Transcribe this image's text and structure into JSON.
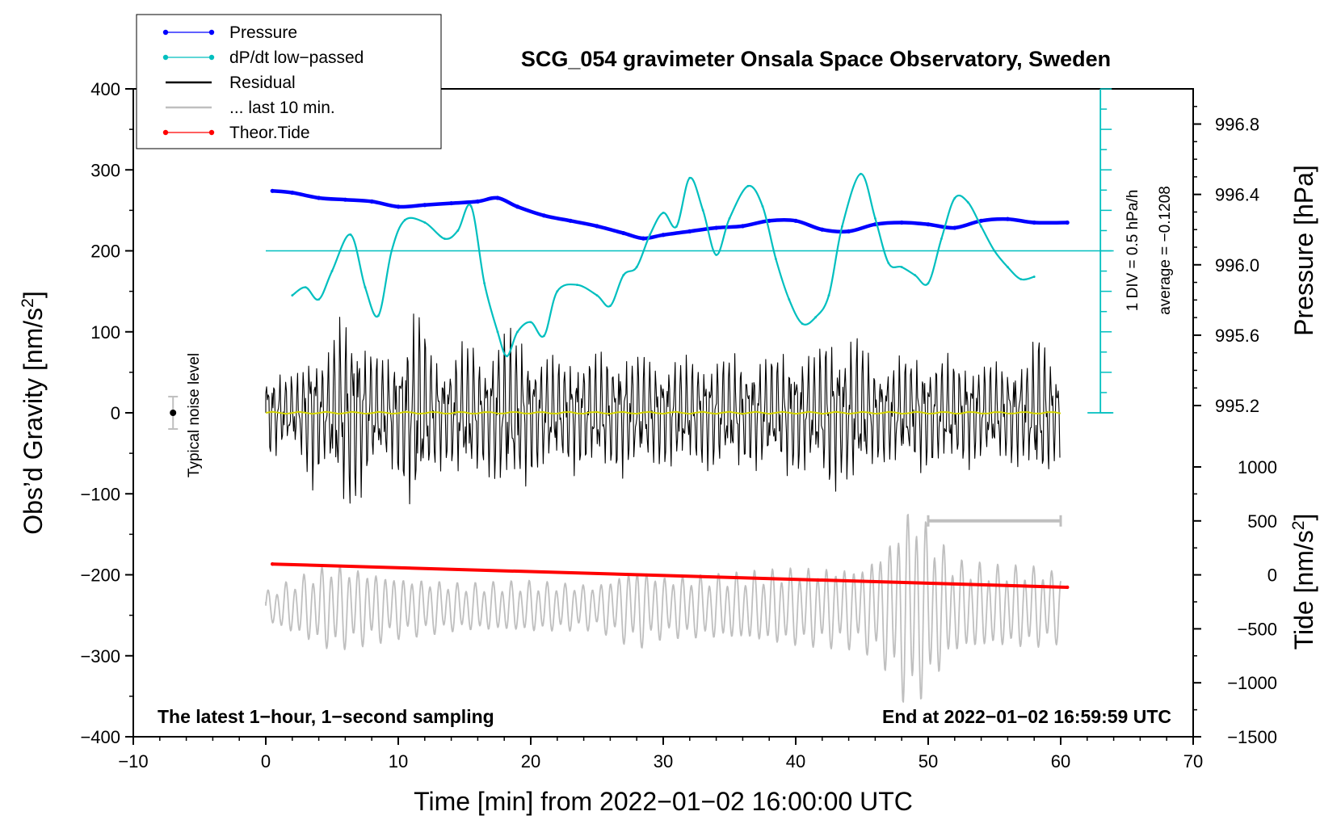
{
  "chart_data": {
    "type": "line",
    "title": "SCG_054 gravimeter Onsala Space Observatory, Sweden",
    "xlabel": "Time [min] from 2022−01−02 16:00:00 UTC",
    "ylabel_left": "Obs’d Gravity [nm/s",
    "ylabel_left_sup": "2",
    "ylabel_left_close": "]",
    "ylabel_right_top": "Pressure [hPa]",
    "ylabel_right_bottom": "Tide [nm/s",
    "ylabel_right_bottom_sup": "2",
    "ylabel_right_bottom_close": "]",
    "xlim": [
      -10,
      70
    ],
    "ylim_left": [
      -400,
      400
    ],
    "ylim_pressure": [
      995.2,
      997.0
    ],
    "ylim_tide": [
      -1500,
      1000
    ],
    "x_ticks": [
      "−10",
      "0",
      "10",
      "20",
      "30",
      "40",
      "50",
      "60",
      "70"
    ],
    "x_tick_values": [
      -10,
      0,
      10,
      20,
      30,
      40,
      50,
      60,
      70
    ],
    "y_ticks_left": [
      "400",
      "300",
      "200",
      "100",
      "0",
      "−100",
      "−200",
      "−300",
      "−400"
    ],
    "y_tick_values_left": [
      400,
      300,
      200,
      100,
      0,
      -100,
      -200,
      -300,
      -400
    ],
    "pressure_ticks": [
      "996.8",
      "996.4",
      "996.0",
      "995.6",
      "995.2"
    ],
    "pressure_tick_values": [
      996.8,
      996.4,
      996.0,
      995.6,
      995.2
    ],
    "tide_ticks": [
      "1000",
      "500",
      "0",
      "−500",
      "−1000",
      "−1500"
    ],
    "tide_tick_values": [
      1000,
      500,
      0,
      -500,
      -1000,
      -1500
    ],
    "legend": [
      {
        "label": "Pressure",
        "color": "#0000ff",
        "style": "line-dot"
      },
      {
        "label": "dP/dt low−passed",
        "color": "#00bfbf",
        "style": "line-dot"
      },
      {
        "label": "Residual",
        "color": "#000000",
        "style": "line"
      },
      {
        "label": "... last 10 min.",
        "color": "#bfbfbf",
        "style": "line"
      },
      {
        "label": "Theor.Tide",
        "color": "#ff0000",
        "style": "line-dot"
      }
    ],
    "annotations": {
      "bottom_left": "The latest 1−hour, 1−second sampling",
      "bottom_right": "End at 2022−01−02 16:59:59 UTC",
      "noise": "Typical noise level",
      "scale_div": "1 DIV = 0.5 hPa/h",
      "scale_avg": "average = −0.1208"
    },
    "noise_bar": {
      "x": -7,
      "y": 0,
      "half_range": 20
    },
    "dpdt_baseline_y": 200,
    "scale_bar": {
      "x": 63,
      "y_top": 400,
      "y_bottom": 0,
      "tick_step_left_units": 25
    },
    "last10_bar": {
      "x_start": 50,
      "x_end": 60,
      "tide_value": 500
    },
    "series": [
      {
        "name": "Pressure",
        "axis": "pressure",
        "color": "#0000ff",
        "x": [
          0.5,
          2,
          4,
          6,
          8,
          10,
          12,
          14,
          16,
          17.5,
          19,
          21,
          23,
          25,
          27,
          28.5,
          30,
          32,
          34,
          36,
          38,
          40,
          42,
          44,
          46,
          48,
          50,
          52,
          54,
          56,
          58,
          60.5
        ],
        "values": [
          996.42,
          996.41,
          996.38,
          996.37,
          996.36,
          996.33,
          996.34,
          996.35,
          996.36,
          996.38,
          996.33,
          996.28,
          996.25,
          996.22,
          996.18,
          996.15,
          996.17,
          996.19,
          996.21,
          996.22,
          996.25,
          996.25,
          996.2,
          996.19,
          996.23,
          996.24,
          996.23,
          996.21,
          996.25,
          996.26,
          996.24,
          996.24
        ]
      },
      {
        "name": "dP/dt low-passed",
        "axis": "left",
        "color": "#00bfbf",
        "x": [
          2,
          3,
          4,
          5,
          6.4,
          7.5,
          8.5,
          9.5,
          10.5,
          12,
          13.5,
          14.5,
          15.5,
          16.5,
          17.5,
          18.2,
          19,
          20,
          21,
          22,
          23.5,
          25,
          26,
          27,
          28,
          29,
          30,
          31,
          32,
          33,
          34,
          35,
          36.4,
          37.5,
          38.5,
          39.5,
          40.5,
          41.5,
          42.5,
          43.5,
          44.9,
          46,
          47,
          48,
          49,
          50,
          51,
          52,
          53,
          54,
          55,
          56,
          57,
          58
        ],
        "values": [
          145,
          155,
          140,
          175,
          220,
          155,
          120,
          200,
          238,
          235,
          215,
          225,
          255,
          160,
          100,
          70,
          100,
          112,
          95,
          150,
          158,
          145,
          132,
          170,
          180,
          220,
          247,
          230,
          290,
          250,
          195,
          240,
          280,
          255,
          190,
          140,
          110,
          118,
          145,
          230,
          295,
          240,
          185,
          180,
          170,
          160,
          215,
          265,
          260,
          230,
          200,
          180,
          165,
          168
        ]
      },
      {
        "name": "Theor.Tide",
        "axis": "tide",
        "color": "#ff0000",
        "x": [
          0.5,
          60.5
        ],
        "values": [
          100,
          -115
        ]
      }
    ]
  }
}
